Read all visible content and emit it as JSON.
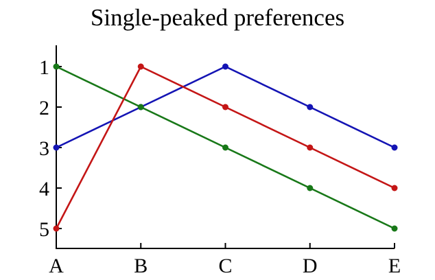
{
  "figure": {
    "background": "#ffffff"
  },
  "chart_data": {
    "type": "line",
    "title": "Single-peaked preferences",
    "categories": [
      "A",
      "B",
      "C",
      "D",
      "E"
    ],
    "y_ticks": [
      "1",
      "2",
      "3",
      "4",
      "5"
    ],
    "y_axis_inverted": true,
    "ylim": [
      1,
      5
    ],
    "xlabel": "",
    "ylabel": "",
    "grid": false,
    "legend": "none",
    "axis_color": "#000000",
    "marker": "filled-circle",
    "series": [
      {
        "name": "blue",
        "color": "#1414b4",
        "values": [
          3,
          2,
          1,
          2,
          3
        ]
      },
      {
        "name": "green",
        "color": "#187818",
        "values": [
          1,
          2,
          3,
          4,
          5
        ]
      },
      {
        "name": "red",
        "color": "#c41616",
        "values": [
          5,
          1,
          2,
          3,
          4
        ]
      }
    ]
  }
}
